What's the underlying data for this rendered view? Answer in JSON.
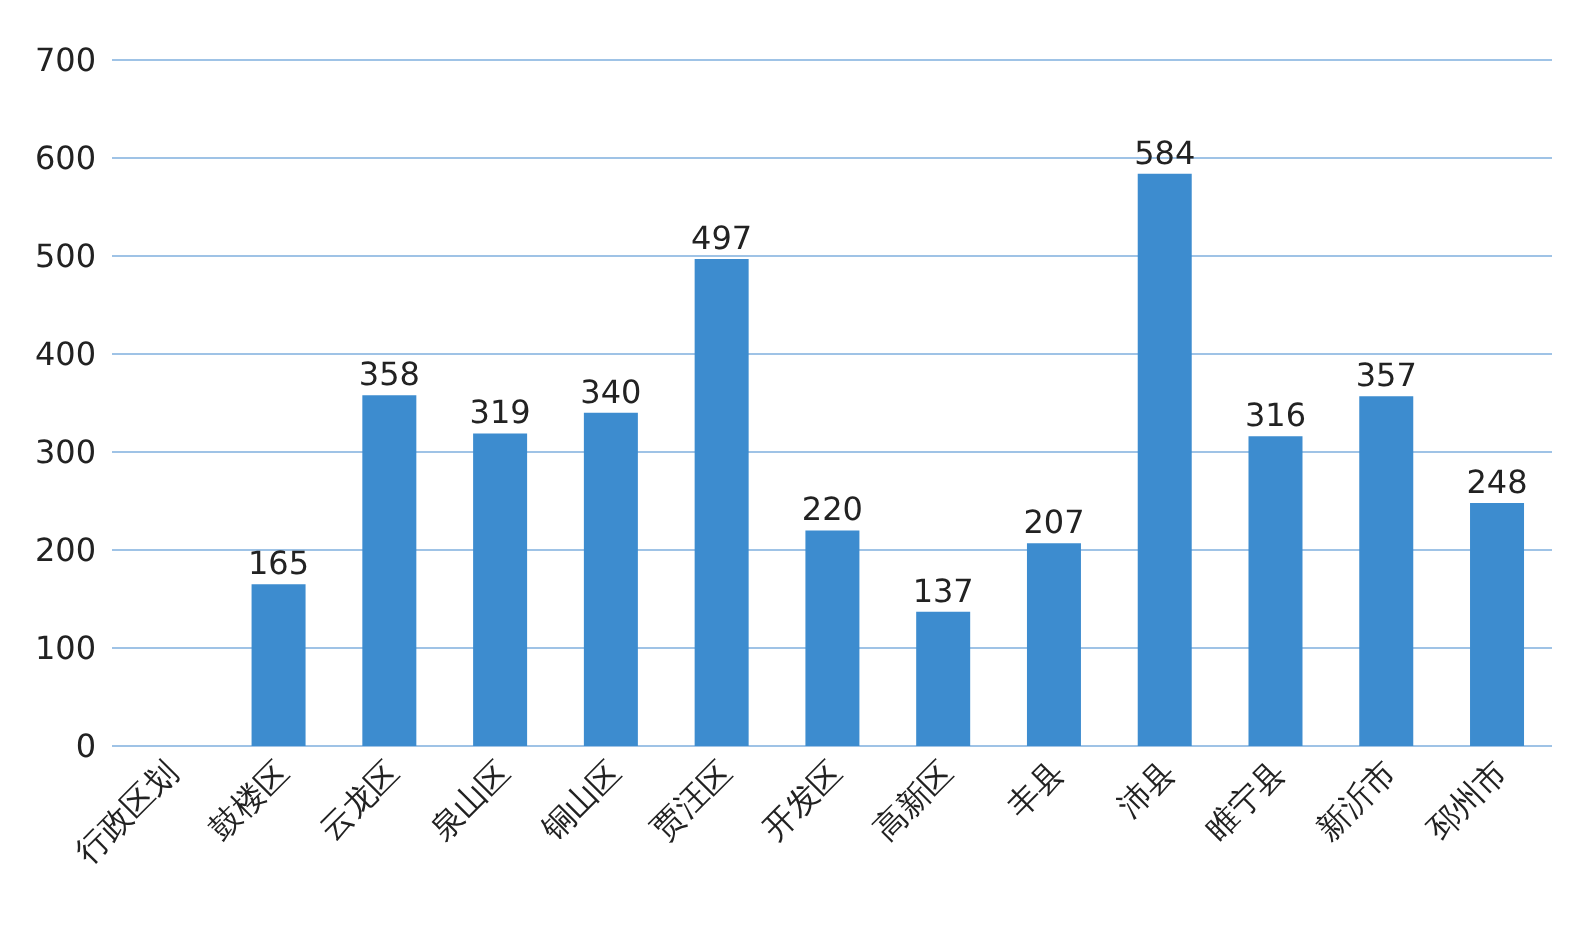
{
  "chart_data": {
    "type": "bar",
    "categories": [
      "行政区划",
      "鼓楼区",
      "云龙区",
      "泉山区",
      "铜山区",
      "贾汪区",
      "开发区",
      "高新区",
      "丰县",
      "沛县",
      "睢宁县",
      "新沂市",
      "邳州市"
    ],
    "values": [
      null,
      165,
      358,
      319,
      340,
      497,
      220,
      137,
      207,
      584,
      316,
      357,
      248
    ],
    "color": "#3d8ccf",
    "ylim": [
      0,
      700
    ],
    "yticks": [
      0,
      100,
      200,
      300,
      400,
      500,
      600,
      700
    ],
    "grid": "y",
    "data_labels": true
  }
}
